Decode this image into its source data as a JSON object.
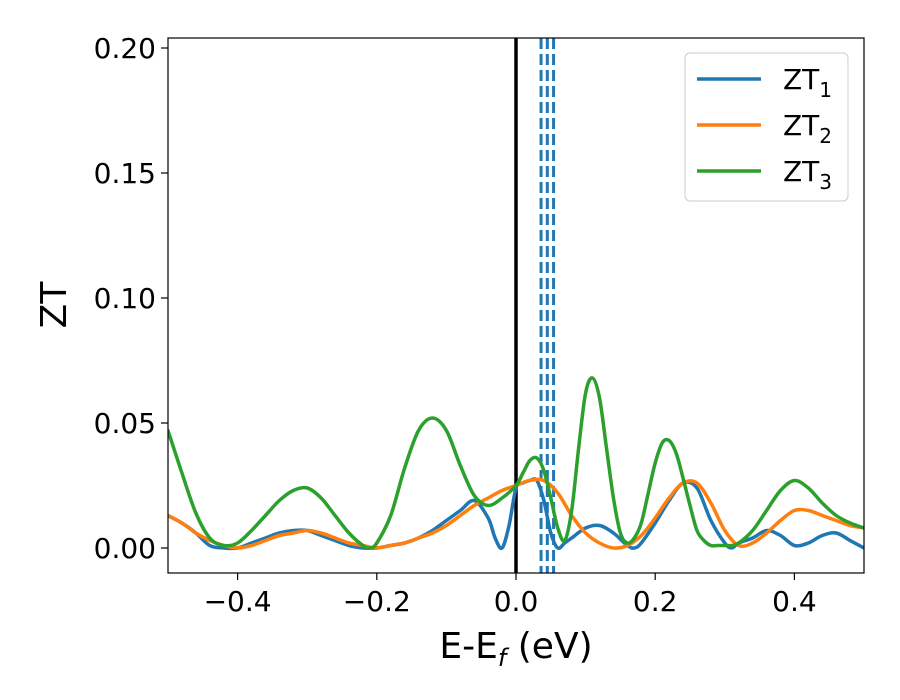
{
  "chart_data": {
    "type": "line",
    "xlabel": "E-E_f (eV)",
    "ylabel": "ZT",
    "xlim": [
      -0.5,
      0.5
    ],
    "ylim": [
      -0.01,
      0.204
    ],
    "xticks": [
      -0.4,
      -0.2,
      0.0,
      0.2,
      0.4
    ],
    "xtick_labels": [
      "−0.4",
      "−0.2",
      "0.0",
      "0.2",
      "0.4"
    ],
    "yticks": [
      0.0,
      0.05,
      0.1,
      0.15,
      0.2
    ],
    "ytick_labels": [
      "0.00",
      "0.05",
      "0.10",
      "0.15",
      "0.20"
    ],
    "grid": false,
    "legend_placement": "top-right",
    "vertical_lines": [
      {
        "x": 0.0,
        "style": "solid",
        "color": "#000000"
      },
      {
        "x": 0.036,
        "style": "dashed",
        "color": "#1f77b4"
      },
      {
        "x": 0.045,
        "style": "dashed",
        "color": "#1f77b4"
      },
      {
        "x": 0.054,
        "style": "dashed",
        "color": "#1f77b4"
      }
    ],
    "series": [
      {
        "name": "ZT_1",
        "name_main": "ZT",
        "name_sub": "1",
        "color": "#1f77b4",
        "x": [
          -0.5,
          -0.48,
          -0.46,
          -0.44,
          -0.42,
          -0.4,
          -0.38,
          -0.36,
          -0.34,
          -0.32,
          -0.3,
          -0.28,
          -0.26,
          -0.24,
          -0.22,
          -0.21,
          -0.2,
          -0.18,
          -0.16,
          -0.14,
          -0.12,
          -0.1,
          -0.08,
          -0.06,
          -0.04,
          -0.03,
          -0.02,
          -0.01,
          0.0,
          0.01,
          0.02,
          0.03,
          0.04,
          0.05,
          0.06,
          0.07,
          0.08,
          0.1,
          0.12,
          0.14,
          0.16,
          0.17,
          0.18,
          0.2,
          0.22,
          0.24,
          0.26,
          0.28,
          0.3,
          0.31,
          0.32,
          0.34,
          0.36,
          0.38,
          0.4,
          0.42,
          0.44,
          0.46,
          0.48,
          0.5
        ],
        "y": [
          0.013,
          0.01,
          0.006,
          0.001,
          0.0,
          0.0,
          0.002,
          0.004,
          0.006,
          0.007,
          0.007,
          0.005,
          0.003,
          0.001,
          0.0,
          0.0,
          0.0,
          0.001,
          0.002,
          0.004,
          0.007,
          0.011,
          0.015,
          0.019,
          0.012,
          0.004,
          0.0,
          0.009,
          0.024,
          0.026,
          0.027,
          0.027,
          0.019,
          0.006,
          0.0,
          0.002,
          0.004,
          0.008,
          0.009,
          0.006,
          0.001,
          0.0,
          0.002,
          0.01,
          0.019,
          0.026,
          0.024,
          0.011,
          0.002,
          0.0,
          0.002,
          0.004,
          0.007,
          0.005,
          0.001,
          0.002,
          0.005,
          0.006,
          0.003,
          0.0
        ]
      },
      {
        "name": "ZT_2",
        "name_main": "ZT",
        "name_sub": "2",
        "color": "#ff7f0e",
        "x": [
          -0.5,
          -0.48,
          -0.46,
          -0.44,
          -0.42,
          -0.4,
          -0.38,
          -0.36,
          -0.34,
          -0.32,
          -0.3,
          -0.28,
          -0.26,
          -0.24,
          -0.22,
          -0.2,
          -0.18,
          -0.16,
          -0.14,
          -0.12,
          -0.1,
          -0.08,
          -0.06,
          -0.04,
          -0.02,
          0.0,
          0.02,
          0.04,
          0.06,
          0.08,
          0.1,
          0.12,
          0.14,
          0.16,
          0.18,
          0.2,
          0.22,
          0.24,
          0.26,
          0.28,
          0.3,
          0.32,
          0.34,
          0.36,
          0.38,
          0.4,
          0.42,
          0.44,
          0.46,
          0.48,
          0.5
        ],
        "y": [
          0.013,
          0.01,
          0.006,
          0.003,
          0.001,
          0.0,
          0.001,
          0.003,
          0.005,
          0.006,
          0.007,
          0.006,
          0.004,
          0.002,
          0.001,
          0.0,
          0.001,
          0.002,
          0.004,
          0.006,
          0.009,
          0.013,
          0.017,
          0.02,
          0.023,
          0.025,
          0.027,
          0.027,
          0.022,
          0.013,
          0.006,
          0.002,
          0.0,
          0.001,
          0.005,
          0.012,
          0.02,
          0.026,
          0.026,
          0.018,
          0.007,
          0.001,
          0.002,
          0.006,
          0.011,
          0.015,
          0.015,
          0.013,
          0.011,
          0.009,
          0.008
        ]
      },
      {
        "name": "ZT_3",
        "name_main": "ZT",
        "name_sub": "3",
        "color": "#2ca02c",
        "x": [
          -0.5,
          -0.48,
          -0.46,
          -0.44,
          -0.42,
          -0.4,
          -0.38,
          -0.36,
          -0.34,
          -0.32,
          -0.3,
          -0.28,
          -0.26,
          -0.24,
          -0.22,
          -0.21,
          -0.2,
          -0.18,
          -0.16,
          -0.14,
          -0.12,
          -0.1,
          -0.08,
          -0.06,
          -0.04,
          -0.02,
          0.0,
          0.01,
          0.02,
          0.03,
          0.04,
          0.05,
          0.06,
          0.07,
          0.08,
          0.09,
          0.1,
          0.11,
          0.12,
          0.13,
          0.14,
          0.15,
          0.16,
          0.17,
          0.18,
          0.19,
          0.2,
          0.21,
          0.22,
          0.23,
          0.24,
          0.25,
          0.26,
          0.27,
          0.28,
          0.29,
          0.3,
          0.31,
          0.32,
          0.34,
          0.36,
          0.38,
          0.4,
          0.42,
          0.44,
          0.46,
          0.48,
          0.5
        ],
        "y": [
          0.047,
          0.03,
          0.014,
          0.004,
          0.001,
          0.002,
          0.007,
          0.013,
          0.019,
          0.023,
          0.024,
          0.02,
          0.013,
          0.006,
          0.001,
          0.0,
          0.002,
          0.013,
          0.032,
          0.047,
          0.052,
          0.047,
          0.033,
          0.021,
          0.017,
          0.02,
          0.025,
          0.03,
          0.035,
          0.036,
          0.031,
          0.02,
          0.008,
          0.003,
          0.015,
          0.04,
          0.062,
          0.068,
          0.06,
          0.04,
          0.02,
          0.006,
          0.002,
          0.004,
          0.01,
          0.022,
          0.034,
          0.042,
          0.043,
          0.038,
          0.028,
          0.017,
          0.007,
          0.003,
          0.001,
          0.001,
          0.001,
          0.001,
          0.002,
          0.007,
          0.015,
          0.023,
          0.027,
          0.024,
          0.018,
          0.013,
          0.01,
          0.008
        ]
      }
    ]
  }
}
